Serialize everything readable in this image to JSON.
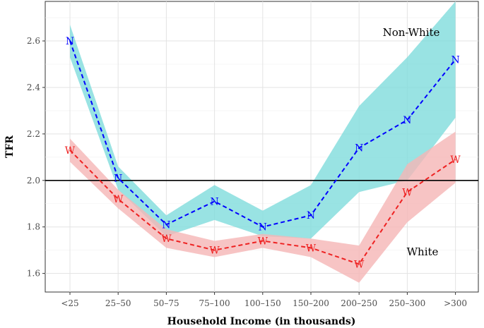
{
  "chart_data": {
    "type": "line",
    "title": "",
    "xlabel": "Household Income (in thousands)",
    "ylabel": "TFR",
    "categories": [
      "<25",
      "25–50",
      "50–75",
      "75–100",
      "100–150",
      "150–200",
      "200–250",
      "250–300",
      ">300"
    ],
    "ylim": [
      1.52,
      2.77
    ],
    "yticks": [
      1.6,
      1.8,
      2.0,
      2.2,
      2.4,
      2.6
    ],
    "reference_line": 2.0,
    "grid": true,
    "series": [
      {
        "name": "Non-White",
        "marker": "N",
        "color": "#0000ff",
        "band_color": "#7fdcdc",
        "values": [
          2.6,
          2.01,
          1.81,
          1.91,
          1.8,
          1.85,
          2.14,
          2.26,
          2.52
        ],
        "lower": [
          2.53,
          1.96,
          1.76,
          1.83,
          1.76,
          1.75,
          1.95,
          2.0,
          2.27
        ],
        "upper": [
          2.67,
          2.06,
          1.85,
          1.98,
          1.87,
          1.98,
          2.32,
          2.53,
          2.77
        ]
      },
      {
        "name": "White",
        "marker": "W",
        "color": "#ee2222",
        "band_color": "#f5b5b5",
        "values": [
          2.13,
          1.92,
          1.75,
          1.7,
          1.74,
          1.71,
          1.64,
          1.95,
          2.09
        ],
        "lower": [
          2.08,
          1.88,
          1.71,
          1.67,
          1.71,
          1.67,
          1.56,
          1.82,
          1.99
        ],
        "upper": [
          2.18,
          1.96,
          1.79,
          1.74,
          1.77,
          1.75,
          1.72,
          2.07,
          2.21
        ]
      }
    ],
    "annotations": [
      "Non-White",
      "White"
    ]
  }
}
